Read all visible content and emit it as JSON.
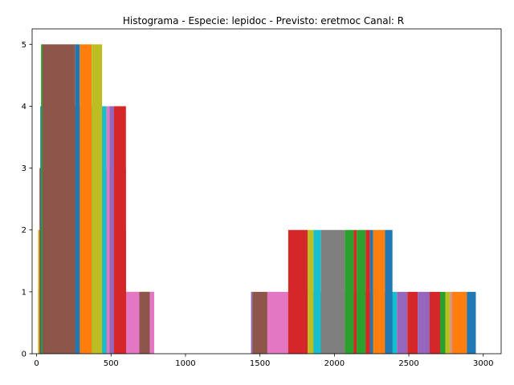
{
  "chart_data": {
    "type": "bar",
    "title": "Histograma - Especie: lepidoc - Previsto: eretmoc Canal: R",
    "xlabel": "",
    "ylabel": "",
    "xlim": [
      -30,
      3120
    ],
    "ylim": [
      0,
      5.25
    ],
    "xticks": [
      0,
      500,
      1000,
      1500,
      2000,
      2500,
      3000
    ],
    "yticks": [
      0,
      1,
      2,
      3,
      4,
      5
    ],
    "grid": false,
    "legend": "none",
    "palette": [
      "#1f77b4",
      "#ff7f0e",
      "#2ca02c",
      "#d62728",
      "#9467bd",
      "#8c564b",
      "#e377c2",
      "#7f7f7f",
      "#bcbd22",
      "#17becf"
    ],
    "bars": [
      {
        "x0": 10,
        "x1": 780,
        "y": 1,
        "color": "#bcbd22"
      },
      {
        "x0": 540,
        "x1": 690,
        "y": 1,
        "color": "#e377c2"
      },
      {
        "x0": 690,
        "x1": 760,
        "y": 1,
        "color": "#8c564b"
      },
      {
        "x0": 760,
        "x1": 790,
        "y": 1,
        "color": "#e377c2"
      },
      {
        "x0": 10,
        "x1": 65,
        "y": 2,
        "color": "#bcbd22"
      },
      {
        "x0": 65,
        "x1": 120,
        "y": 2,
        "color": "#bcbd22"
      },
      {
        "x0": 120,
        "x1": 265,
        "y": 2,
        "color": "#7f7f7f"
      },
      {
        "x0": 265,
        "x1": 400,
        "y": 2,
        "color": "#bcbd22"
      },
      {
        "x0": 400,
        "x1": 540,
        "y": 2,
        "color": "#7f7f7f"
      },
      {
        "x0": 540,
        "x1": 600,
        "y": 2,
        "color": "#d62728"
      },
      {
        "x0": 20,
        "x1": 40,
        "y": 3,
        "color": "#d62728"
      },
      {
        "x0": 40,
        "x1": 55,
        "y": 3,
        "color": "#9467bd"
      },
      {
        "x0": 55,
        "x1": 200,
        "y": 3,
        "color": "#e377c2"
      },
      {
        "x0": 200,
        "x1": 225,
        "y": 3,
        "color": "#8c564b"
      },
      {
        "x0": 225,
        "x1": 265,
        "y": 3,
        "color": "#7f7f7f"
      },
      {
        "x0": 265,
        "x1": 400,
        "y": 3,
        "color": "#bcbd22"
      },
      {
        "x0": 400,
        "x1": 480,
        "y": 3,
        "color": "#7f7f7f"
      },
      {
        "x0": 480,
        "x1": 540,
        "y": 3,
        "color": "#bcbd22"
      },
      {
        "x0": 540,
        "x1": 600,
        "y": 3,
        "color": "#d62728"
      },
      {
        "x0": 25,
        "x1": 45,
        "y": 4,
        "color": "#1f77b4"
      },
      {
        "x0": 45,
        "x1": 200,
        "y": 4,
        "color": "#8c564b"
      },
      {
        "x0": 200,
        "x1": 215,
        "y": 4,
        "color": "#2ca02c"
      },
      {
        "x0": 215,
        "x1": 240,
        "y": 4,
        "color": "#17becf"
      },
      {
        "x0": 240,
        "x1": 380,
        "y": 4,
        "color": "#7f7f7f"
      },
      {
        "x0": 380,
        "x1": 415,
        "y": 4,
        "color": "#e377c2"
      },
      {
        "x0": 415,
        "x1": 470,
        "y": 4,
        "color": "#17becf"
      },
      {
        "x0": 470,
        "x1": 490,
        "y": 4,
        "color": "#e377c2"
      },
      {
        "x0": 490,
        "x1": 520,
        "y": 4,
        "color": "#9467bd"
      },
      {
        "x0": 520,
        "x1": 600,
        "y": 4,
        "color": "#d62728"
      },
      {
        "x0": 30,
        "x1": 40,
        "y": 5,
        "color": "#2ca02c"
      },
      {
        "x0": 40,
        "x1": 260,
        "y": 5,
        "color": "#8c564b"
      },
      {
        "x0": 260,
        "x1": 290,
        "y": 5,
        "color": "#1f77b4"
      },
      {
        "x0": 290,
        "x1": 370,
        "y": 5,
        "color": "#ff7f0e"
      },
      {
        "x0": 370,
        "x1": 440,
        "y": 5,
        "color": "#bcbd22"
      },
      {
        "x0": 1440,
        "x1": 1450,
        "y": 1,
        "color": "#9467bd"
      },
      {
        "x0": 1450,
        "x1": 1550,
        "y": 1,
        "color": "#8c564b"
      },
      {
        "x0": 1550,
        "x1": 1800,
        "y": 1,
        "color": "#e377c2"
      },
      {
        "x0": 1800,
        "x1": 1830,
        "y": 1,
        "color": "#7f7f7f"
      },
      {
        "x0": 1830,
        "x1": 1960,
        "y": 1,
        "color": "#8c564b"
      },
      {
        "x0": 1960,
        "x1": 2030,
        "y": 1,
        "color": "#bcbd22"
      },
      {
        "x0": 2030,
        "x1": 2100,
        "y": 1,
        "color": "#bcbd22"
      },
      {
        "x0": 2100,
        "x1": 2150,
        "y": 1,
        "color": "#e377c2"
      },
      {
        "x0": 2150,
        "x1": 2200,
        "y": 1,
        "color": "#17becf"
      },
      {
        "x0": 2200,
        "x1": 2260,
        "y": 1,
        "color": "#bcbd22"
      },
      {
        "x0": 2260,
        "x1": 2330,
        "y": 1,
        "color": "#bcbd22"
      },
      {
        "x0": 2330,
        "x1": 2360,
        "y": 1,
        "color": "#7f7f7f"
      },
      {
        "x0": 2360,
        "x1": 2420,
        "y": 1,
        "color": "#17becf"
      },
      {
        "x0": 2420,
        "x1": 2490,
        "y": 1,
        "color": "#9467bd"
      },
      {
        "x0": 2490,
        "x1": 2560,
        "y": 1,
        "color": "#d62728"
      },
      {
        "x0": 2560,
        "x1": 2640,
        "y": 1,
        "color": "#9467bd"
      },
      {
        "x0": 2640,
        "x1": 2710,
        "y": 1,
        "color": "#d62728"
      },
      {
        "x0": 2710,
        "x1": 2745,
        "y": 1,
        "color": "#2ca02c"
      },
      {
        "x0": 2745,
        "x1": 2780,
        "y": 1,
        "color": "#bcbd22"
      },
      {
        "x0": 2780,
        "x1": 2790,
        "y": 1,
        "color": "#e377c2"
      },
      {
        "x0": 2790,
        "x1": 2890,
        "y": 1,
        "color": "#ff7f0e"
      },
      {
        "x0": 2890,
        "x1": 2950,
        "y": 1,
        "color": "#1f77b4"
      },
      {
        "x0": 1690,
        "x1": 1820,
        "y": 2,
        "color": "#d62728"
      },
      {
        "x0": 1820,
        "x1": 1860,
        "y": 2,
        "color": "#bcbd22"
      },
      {
        "x0": 1860,
        "x1": 1910,
        "y": 2,
        "color": "#17becf"
      },
      {
        "x0": 1910,
        "x1": 2070,
        "y": 2,
        "color": "#7f7f7f"
      },
      {
        "x0": 2070,
        "x1": 2130,
        "y": 2,
        "color": "#2ca02c"
      },
      {
        "x0": 2130,
        "x1": 2150,
        "y": 2,
        "color": "#d62728"
      },
      {
        "x0": 2150,
        "x1": 2210,
        "y": 2,
        "color": "#2ca02c"
      },
      {
        "x0": 2210,
        "x1": 2240,
        "y": 2,
        "color": "#d62728"
      },
      {
        "x0": 2240,
        "x1": 2260,
        "y": 2,
        "color": "#1f77b4"
      },
      {
        "x0": 2260,
        "x1": 2340,
        "y": 2,
        "color": "#ff7f0e"
      },
      {
        "x0": 2340,
        "x1": 2390,
        "y": 2,
        "color": "#1f77b4"
      }
    ]
  }
}
